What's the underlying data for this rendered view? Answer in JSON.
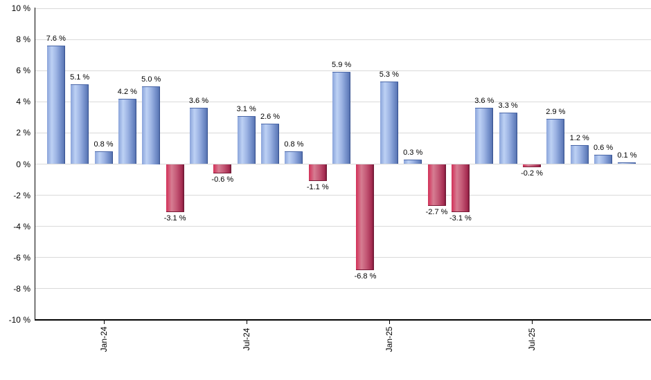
{
  "chart_data": {
    "type": "bar",
    "title": "",
    "xlabel": "",
    "ylabel": "",
    "ylim": [
      -10,
      10
    ],
    "grid": true,
    "legend": false,
    "values": [
      7.6,
      5.1,
      0.8,
      4.2,
      5.0,
      -3.1,
      3.6,
      -0.6,
      3.1,
      2.6,
      0.8,
      -1.1,
      5.9,
      -6.8,
      5.3,
      0.3,
      -2.7,
      -3.1,
      3.6,
      3.3,
      -0.2,
      2.9,
      1.2,
      0.6,
      0.1
    ],
    "bar_labels": [
      "7.6 %",
      "5.1 %",
      "0.8 %",
      "4.2 %",
      "5.0 %",
      "-3.1 %",
      "3.6 %",
      "-0.6 %",
      "3.1 %",
      "2.6 %",
      "0.8 %",
      "-1.1 %",
      "5.9 %",
      "-6.8 %",
      "5.3 %",
      "0.3 %",
      "-2.7 %",
      "-3.1 %",
      "3.6 %",
      "3.3 %",
      "-0.2 %",
      "2.9 %",
      "1.2 %",
      "0.6 %",
      "0.1 %"
    ],
    "x_ticks": [
      {
        "label": "Jan-24",
        "bar_index": 2
      },
      {
        "label": "Jul-24",
        "bar_index": 8
      },
      {
        "label": "Jan-25",
        "bar_index": 14
      },
      {
        "label": "Jul-25",
        "bar_index": 20
      }
    ],
    "y_ticks": [
      {
        "value": 10,
        "label": "10 %"
      },
      {
        "value": 8,
        "label": "8 %"
      },
      {
        "value": 6,
        "label": "6 %"
      },
      {
        "value": 4,
        "label": "4 %"
      },
      {
        "value": 2,
        "label": "2 %"
      },
      {
        "value": 0,
        "label": "0 %"
      },
      {
        "value": -2,
        "label": "-2 %"
      },
      {
        "value": -4,
        "label": "-4 %"
      },
      {
        "value": -6,
        "label": "-6 %"
      },
      {
        "value": -8,
        "label": "-8 %"
      },
      {
        "value": -10,
        "label": "-10 %"
      }
    ],
    "colors": {
      "positive": "#7b97cf",
      "positive_light": "#bdd1f4",
      "positive_dark": "#26417f",
      "negative": "#c83a60",
      "negative_light": "#d67d92",
      "negative_dark": "#671530",
      "gridline": "#d9d9d9",
      "axis": "#000000",
      "text": "#000000",
      "background": "#ffffff"
    }
  }
}
